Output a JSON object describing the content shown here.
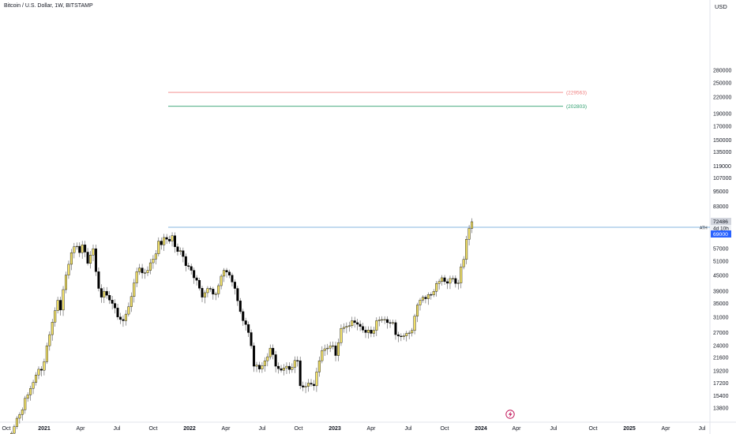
{
  "header": {
    "title": "Bitcoin / U.S. Dollar, 1W, BITSTAMP",
    "currency": "USD"
  },
  "colors": {
    "up_fill": "#F2E168",
    "down_fill": "#000000",
    "outline": "#000000",
    "ath_line": "#5B9BD5",
    "target_red": "#F08080",
    "target_green": "#2E9E6E",
    "ath_badge": "#2962FF",
    "price_badge": "#D1D4DC",
    "lightning": "#C2185B"
  },
  "chart_data": {
    "type": "candlestick",
    "y_scale": "log",
    "x_range": [
      "2020-10",
      "2025-07"
    ],
    "y_ticks": [
      280000,
      250000,
      220000,
      190000,
      170000,
      150000,
      135000,
      119000,
      107000,
      95000,
      83000,
      69000,
      57000,
      51000,
      45000,
      39000,
      35000,
      31000,
      27000,
      24000,
      21600,
      19200,
      17200,
      15400,
      13800
    ],
    "x_ticks": [
      "Oct",
      "2021",
      "Apr",
      "Jul",
      "Oct",
      "2022",
      "Apr",
      "Jul",
      "Oct",
      "2023",
      "Apr",
      "Jul",
      "Oct",
      "2024",
      "Apr",
      "Jul",
      "Oct",
      "2025",
      "Apr",
      "Jul"
    ],
    "bold_x_ticks": [
      "2021",
      "2022",
      "2023",
      "2024",
      "2025"
    ],
    "horizontal_levels": [
      {
        "value": 229563,
        "label": "(229563)",
        "color": "#F08080",
        "from": "2021-11"
      },
      {
        "value": 202803,
        "label": "(202803)",
        "color": "#2E9E6E",
        "from": "2021-11"
      },
      {
        "value": 69000,
        "label": "ATH",
        "color": "#5B9BD5",
        "from": "2021-11"
      }
    ],
    "last_price": {
      "value": "72486",
      "countdown": "4d 10h"
    },
    "ath_value": "69000",
    "anchors": [
      [
        0,
        11000
      ],
      [
        3,
        13000
      ],
      [
        6,
        15500
      ],
      [
        9,
        18500
      ],
      [
        11,
        19300
      ],
      [
        14,
        26500
      ],
      [
        17,
        36000
      ],
      [
        18,
        33000
      ],
      [
        20,
        45000
      ],
      [
        22,
        55000
      ],
      [
        23,
        58000
      ],
      [
        25,
        55000
      ],
      [
        26,
        59000
      ],
      [
        28,
        50000
      ],
      [
        30,
        57000
      ],
      [
        32,
        40000
      ],
      [
        33,
        37000
      ],
      [
        34,
        39000
      ],
      [
        37,
        35000
      ],
      [
        39,
        31000
      ],
      [
        41,
        30000
      ],
      [
        43,
        34000
      ],
      [
        45,
        42000
      ],
      [
        47,
        48000
      ],
      [
        49,
        46000
      ],
      [
        50,
        47000
      ],
      [
        52,
        52000
      ],
      [
        54,
        61000
      ],
      [
        55,
        59000
      ],
      [
        56,
        63000
      ],
      [
        58,
        61000
      ],
      [
        59,
        64000
      ],
      [
        60,
        58000
      ],
      [
        62,
        56000
      ],
      [
        64,
        49000
      ],
      [
        66,
        47000
      ],
      [
        68,
        43000
      ],
      [
        70,
        37000
      ],
      [
        72,
        40000
      ],
      [
        74,
        38000
      ],
      [
        76,
        41000
      ],
      [
        78,
        47000
      ],
      [
        80,
        45000
      ],
      [
        82,
        40000
      ],
      [
        85,
        30000
      ],
      [
        86,
        29000
      ],
      [
        88,
        24000
      ],
      [
        89,
        20000
      ],
      [
        91,
        19500
      ],
      [
        93,
        21000
      ],
      [
        95,
        23500
      ],
      [
        97,
        20000
      ],
      [
        99,
        19300
      ],
      [
        101,
        20000
      ],
      [
        103,
        19800
      ],
      [
        105,
        21000
      ],
      [
        106,
        16800
      ],
      [
        107,
        16600
      ],
      [
        109,
        17200
      ],
      [
        111,
        16800
      ],
      [
        113,
        21000
      ],
      [
        114,
        23000
      ],
      [
        116,
        23500
      ],
      [
        118,
        24000
      ],
      [
        119,
        22000
      ],
      [
        121,
        28000
      ],
      [
        123,
        28500
      ],
      [
        125,
        30000
      ],
      [
        126,
        29500
      ],
      [
        128,
        28500
      ],
      [
        130,
        27000
      ],
      [
        132,
        26800
      ],
      [
        134,
        30000
      ],
      [
        136,
        30300
      ],
      [
        138,
        29500
      ],
      [
        140,
        29500
      ],
      [
        141,
        26500
      ],
      [
        143,
        26000
      ],
      [
        145,
        26800
      ],
      [
        147,
        27500
      ],
      [
        149,
        34500
      ],
      [
        151,
        37000
      ],
      [
        152,
        36500
      ],
      [
        154,
        37800
      ],
      [
        156,
        41800
      ],
      [
        158,
        44000
      ],
      [
        159,
        42500
      ],
      [
        161,
        43700
      ],
      [
        163,
        41800
      ],
      [
        164,
        42000
      ],
      [
        165,
        48500
      ],
      [
        166,
        51800
      ],
      [
        167,
        62000
      ],
      [
        168,
        68300
      ],
      [
        169,
        72486
      ]
    ]
  }
}
